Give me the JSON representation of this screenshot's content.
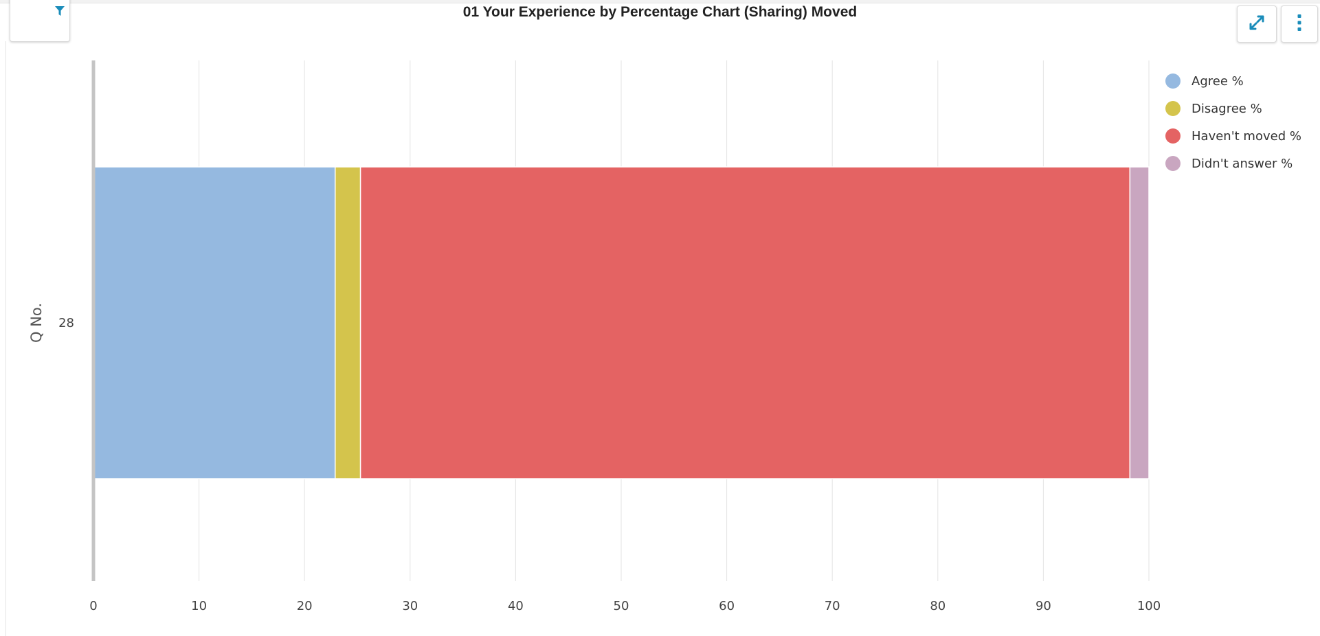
{
  "header": {
    "title": "01 Your Experience by Percentage Chart (Sharing) Moved"
  },
  "toolbar": {
    "filter_icon": "filter-icon",
    "expand_icon": "expand-icon",
    "menu_icon": "kebab-menu-icon",
    "accent_color": "#1a8cba"
  },
  "chart_data": {
    "type": "bar",
    "orientation": "horizontal",
    "stacked": true,
    "title": "01 Your Experience by Percentage Chart (Sharing) Moved",
    "ylabel": "Q No.",
    "xlabel": "",
    "categories": [
      "28"
    ],
    "xlim": [
      0,
      100
    ],
    "xticks": [
      0,
      10,
      20,
      30,
      40,
      50,
      60,
      70,
      80,
      90,
      100
    ],
    "grid": true,
    "legend_position": "top-right",
    "series": [
      {
        "name": "Agree %",
        "values": [
          22.9
        ],
        "color": "#95b9e0"
      },
      {
        "name": "Disagree %",
        "values": [
          2.4
        ],
        "color": "#d4c44c"
      },
      {
        "name": "Haven't moved %",
        "values": [
          72.9
        ],
        "color": "#e46363"
      },
      {
        "name": "Didn't answer %",
        "values": [
          1.8
        ],
        "color": "#c9a6c0"
      }
    ]
  }
}
